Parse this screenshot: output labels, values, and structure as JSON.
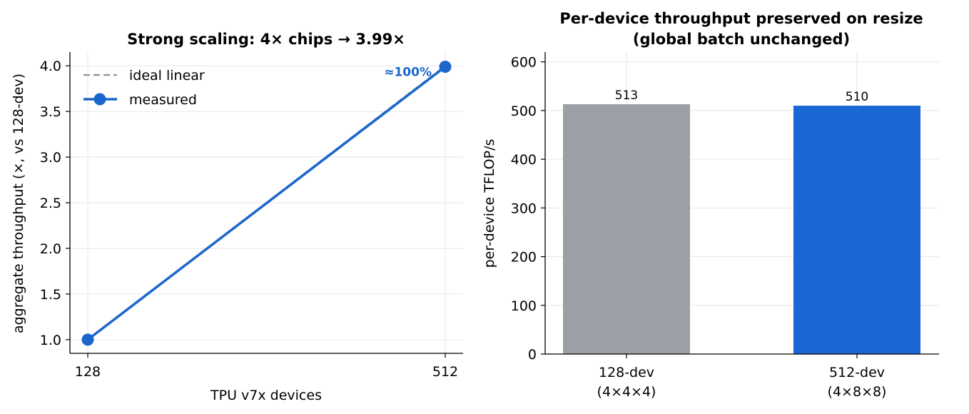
{
  "chart_data": [
    {
      "type": "line",
      "title": "Strong scaling: 4× chips → 3.99×",
      "xlabel": "TPU v7x devices",
      "ylabel": "aggregate throughput (×, vs 128-dev)",
      "x_ticks": [
        "128",
        "512"
      ],
      "y_ticks": [
        "1.0",
        "1.5",
        "2.0",
        "2.5",
        "3.0",
        "3.5",
        "4.0"
      ],
      "ylim": [
        0.85,
        4.15
      ],
      "grid": true,
      "legend_position": "upper-left",
      "series": [
        {
          "name": "ideal linear",
          "style": "dashed",
          "color": "#999999",
          "x": [
            128,
            512
          ],
          "y": [
            1.0,
            4.0
          ]
        },
        {
          "name": "measured",
          "style": "solid-marker",
          "color": "#1a66cc",
          "x": [
            128,
            512
          ],
          "y": [
            1.0,
            3.99
          ]
        }
      ],
      "annotations": [
        {
          "text": "≈100%",
          "x": 512,
          "y": 3.99,
          "color": "#1a66cc"
        }
      ]
    },
    {
      "type": "bar",
      "title": "Per-device throughput preserved on resize",
      "subtitle": "(global batch unchanged)",
      "xlabel": "",
      "ylabel": "per-device TFLOP/s",
      "y_ticks": [
        "0",
        "100",
        "200",
        "300",
        "400",
        "500",
        "600"
      ],
      "ylim": [
        0,
        620
      ],
      "grid": true,
      "categories": [
        {
          "line1": "128-dev",
          "line2": "(4×4×4)"
        },
        {
          "line1": "512-dev",
          "line2": "(4×8×8)"
        }
      ],
      "values": [
        513,
        510
      ],
      "data_labels": [
        "513",
        "510"
      ],
      "colors": [
        "#9aa0a6",
        "#1a66d4"
      ]
    }
  ]
}
